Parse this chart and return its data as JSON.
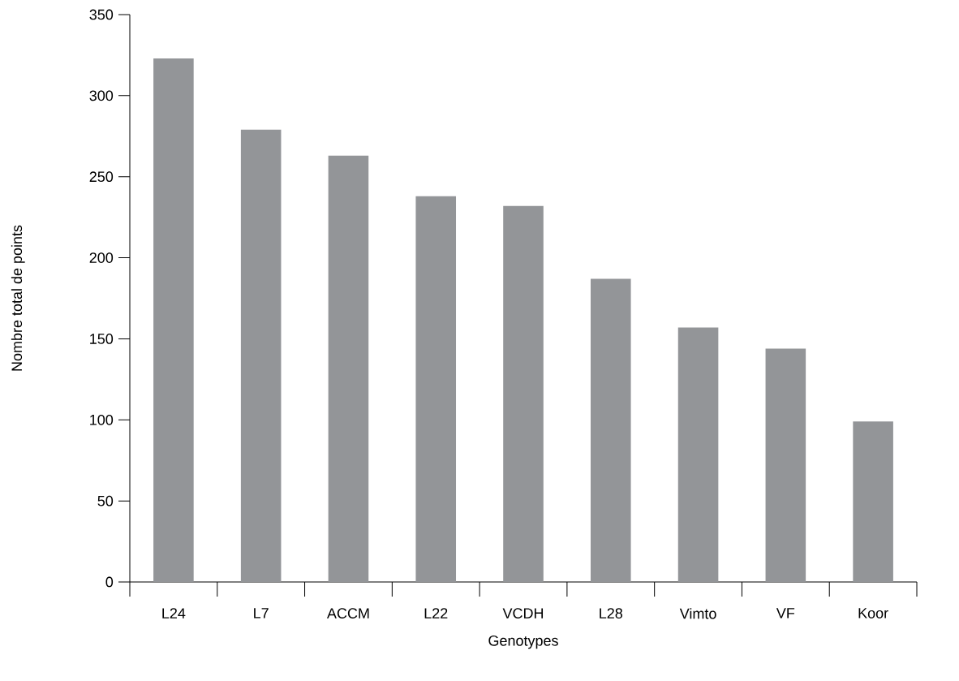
{
  "chart_data": {
    "type": "bar",
    "xlabel": "Genotypes",
    "ylabel": "Nombre total de points",
    "categories": [
      "L24",
      "L7",
      "ACCM",
      "L22",
      "VCDH",
      "L28",
      "Vimto",
      "VF",
      "Koor"
    ],
    "values": [
      323,
      279,
      263,
      238,
      232,
      187,
      157,
      144,
      99
    ],
    "color": "#939598",
    "ylim": [
      0,
      350
    ],
    "yticks": [
      0,
      50,
      100,
      150,
      200,
      250,
      300,
      350
    ],
    "grid": false
  }
}
